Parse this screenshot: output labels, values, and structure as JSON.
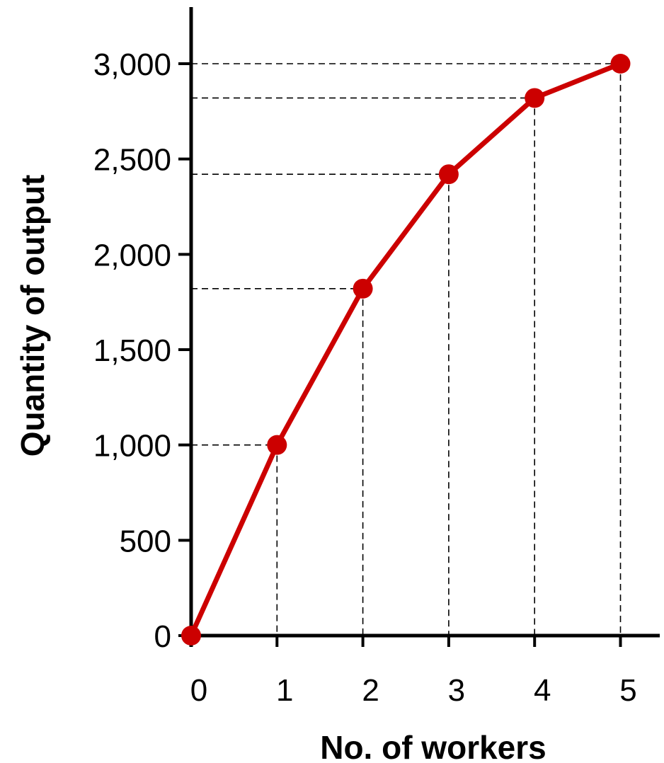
{
  "chart_data": {
    "type": "line",
    "xlabel": "No. of workers",
    "ylabel": "Quantity of output",
    "x": [
      0,
      1,
      2,
      3,
      4,
      5
    ],
    "y": [
      0,
      1000,
      1820,
      2420,
      2820,
      3000
    ],
    "xticks": [
      "0",
      "1",
      "2",
      "3",
      "4",
      "5"
    ],
    "yticks": [
      {
        "value": 0,
        "label": "0"
      },
      {
        "value": 500,
        "label": "500"
      },
      {
        "value": 1000,
        "label": "1,000"
      },
      {
        "value": 1500,
        "label": "1,500"
      },
      {
        "value": 2000,
        "label": "2,000"
      },
      {
        "value": 2500,
        "label": "2,500"
      },
      {
        "value": 3000,
        "label": "3,000"
      }
    ],
    "xlim": [
      0,
      5.5
    ],
    "ylim": [
      0,
      3300
    ],
    "grid": false,
    "dashed_guides": true,
    "line_color": "#cc0000",
    "marker_color": "#cc0000"
  }
}
